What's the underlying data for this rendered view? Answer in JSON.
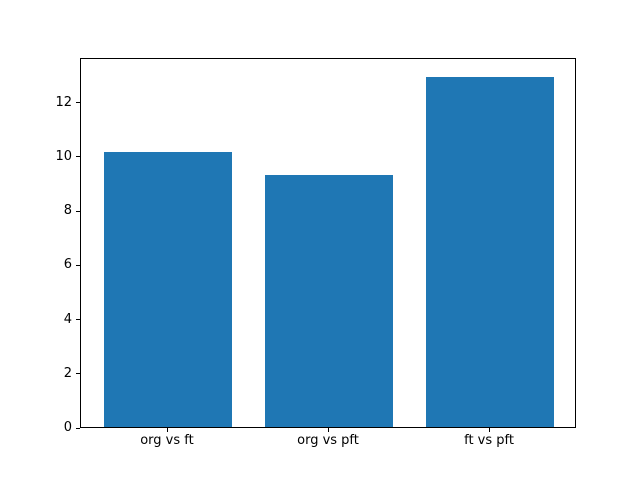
{
  "figure": {
    "background": "#ffffff",
    "text_color": "#000000",
    "spine_color": "#000000"
  },
  "chart_data": {
    "type": "bar",
    "title": "",
    "xlabel": "",
    "ylabel": "",
    "categories": [
      "org vs ft",
      "org vs pft",
      "ft vs pft"
    ],
    "values": [
      10.2,
      9.35,
      13.0
    ],
    "bar_color": "#1f77b4",
    "bar_width": 0.8,
    "yticks": [
      0,
      2,
      4,
      6,
      8,
      10,
      12
    ],
    "ylim": [
      0,
      13.65
    ],
    "xlim": [
      -0.54,
      2.54
    ],
    "grid": false,
    "legend_position": "none"
  }
}
